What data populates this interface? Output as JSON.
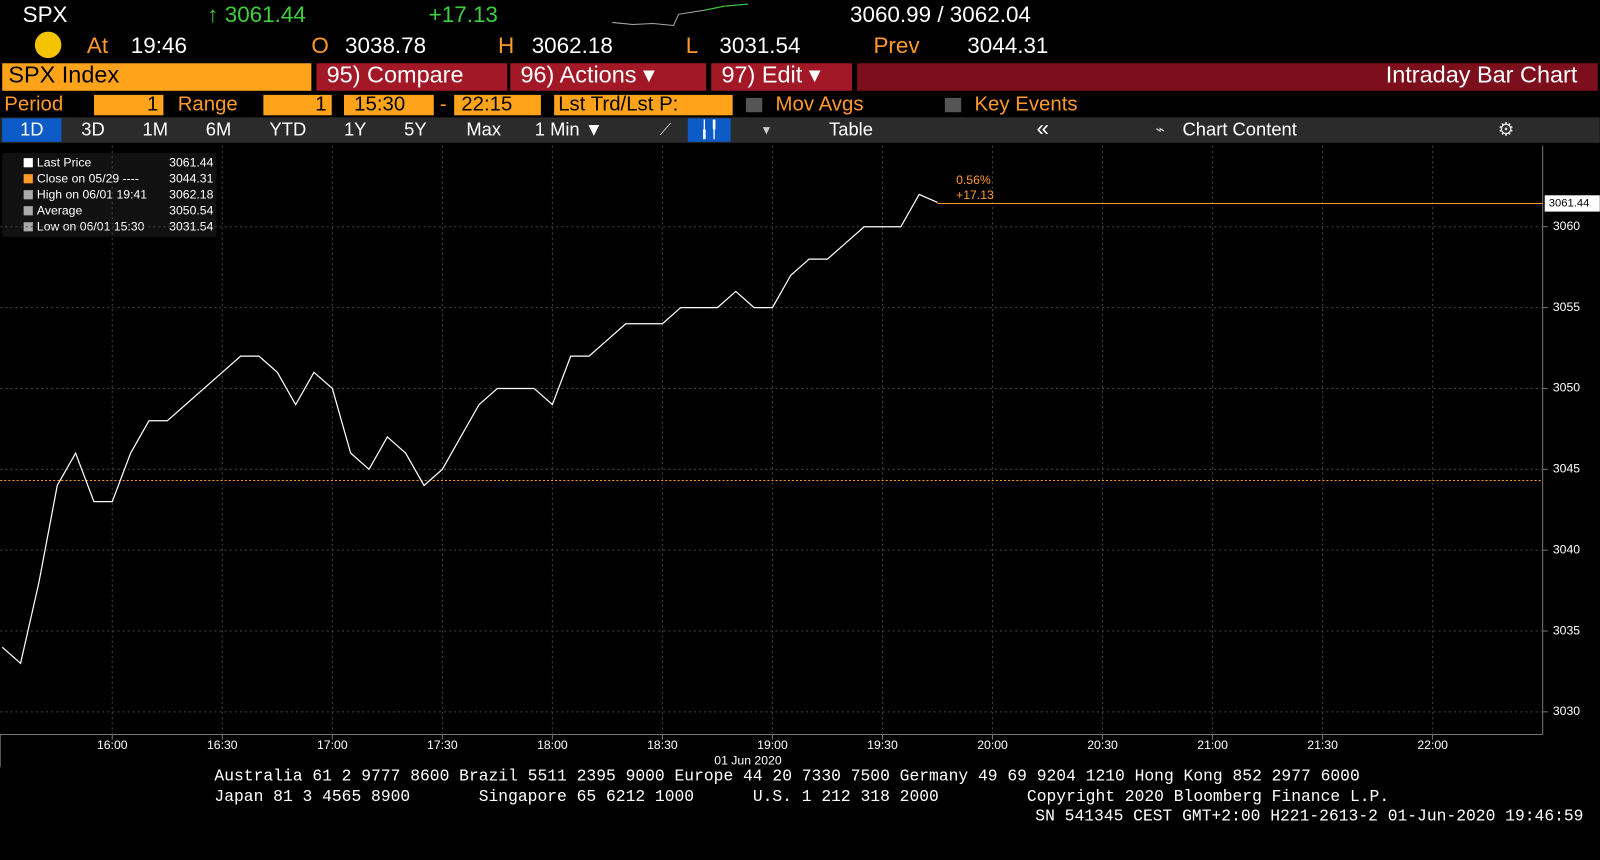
{
  "header": {
    "ticker": "SPX",
    "last": "↑ 3061.44",
    "change": "+17.13",
    "bid_ask": "3060.99 / 3062.04",
    "at_label": "At",
    "time": "19:46",
    "open_label": "O",
    "open": "3038.78",
    "high_label": "H",
    "high": "3062.18",
    "low_label": "L",
    "low": "3031.54",
    "prev_label": "Prev",
    "prev": "3044.31"
  },
  "menu": {
    "security": "SPX Index",
    "compare": "95) Compare",
    "actions": "96) Actions ▾",
    "edit": "97) Edit ▾",
    "title": "Intraday Bar Chart"
  },
  "settings": {
    "period_label": "Period",
    "period": "1",
    "range_label": "Range",
    "range": "1",
    "start": "15:30",
    "dash": "-",
    "end": "22:15",
    "field": "Lst Trd/Lst P:",
    "mov_avgs": "Mov Avgs",
    "key_events": "Key Events"
  },
  "toolbar": {
    "tabs": [
      "1D",
      "3D",
      "1M",
      "6M",
      "YTD",
      "1Y",
      "5Y",
      "Max"
    ],
    "interval": "1 Min ▼",
    "table": "Table",
    "collapse": "«",
    "chart_content": "Chart Content"
  },
  "legend": [
    {
      "label": "Last Price",
      "value": "3061.44"
    },
    {
      "label": "Close on 05/29 ----",
      "value": "3044.31"
    },
    {
      "label": "High on 06/01 19:41",
      "value": "3062.18"
    },
    {
      "label": "Average",
      "value": "3050.54"
    },
    {
      "label": "Low on 06/01 15:30",
      "value": "3031.54"
    }
  ],
  "chart_data": {
    "type": "line",
    "date_label": "01 Jun 2020",
    "x": [
      "15:30",
      "15:35",
      "15:40",
      "15:45",
      "15:50",
      "15:55",
      "16:00",
      "16:05",
      "16:10",
      "16:15",
      "16:20",
      "16:25",
      "16:30",
      "16:35",
      "16:40",
      "16:45",
      "16:50",
      "16:55",
      "17:00",
      "17:05",
      "17:10",
      "17:15",
      "17:20",
      "17:25",
      "17:30",
      "17:35",
      "17:40",
      "17:45",
      "17:50",
      "17:55",
      "18:00",
      "18:05",
      "18:10",
      "18:15",
      "18:20",
      "18:25",
      "18:30",
      "18:35",
      "18:40",
      "18:45",
      "18:50",
      "18:55",
      "19:00",
      "19:05",
      "19:10",
      "19:15",
      "19:20",
      "19:25",
      "19:30",
      "19:35",
      "19:40",
      "19:45"
    ],
    "series": [
      {
        "name": "Last Price",
        "color": "#ffffff",
        "values": [
          3034,
          3033,
          3038,
          3044,
          3046,
          3043,
          3043,
          3046,
          3048,
          3048,
          3049,
          3050,
          3051,
          3052,
          3052,
          3051,
          3049,
          3051,
          3050,
          3046,
          3045,
          3047,
          3046,
          3044,
          3045,
          3047,
          3049,
          3050,
          3050,
          3050,
          3049,
          3052,
          3052,
          3053,
          3054,
          3054,
          3054,
          3055,
          3055,
          3055,
          3056,
          3055,
          3055,
          3057,
          3058,
          3058,
          3059,
          3060,
          3060,
          3060,
          3062,
          3061.5
        ]
      }
    ],
    "prev_close": {
      "value": 3044.31,
      "color": "#ff9a28"
    },
    "last_price": {
      "value": 3061.44,
      "color": "#ff9a28"
    },
    "change_pct": "0.56%",
    "change_abs": "+17.13",
    "xlim": [
      "15:30",
      "22:30"
    ],
    "xticks": [
      "16:00",
      "16:30",
      "17:00",
      "17:30",
      "18:00",
      "18:30",
      "19:00",
      "19:30",
      "20:00",
      "20:30",
      "21:00",
      "21:30",
      "22:00"
    ],
    "ylim": [
      3028.6,
      3065
    ],
    "yticks": [
      3030,
      3035,
      3040,
      3045,
      3050,
      3055,
      3060
    ],
    "grid": true
  },
  "footer": {
    "line1": "Australia 61 2 9777 8600 Brazil 5511 2395 9000 Europe 44 20 7330 7500 Germany 49 69 9204 1210 Hong Kong 852 2977 6000",
    "line2": "Japan 81 3 4565 8900       Singapore 65 6212 1000      U.S. 1 212 318 2000         Copyright 2020 Bloomberg Finance L.P.",
    "line3": "SN 541345 CEST GMT+2:00 H221-2613-2 01-Jun-2020 19:46:59"
  }
}
